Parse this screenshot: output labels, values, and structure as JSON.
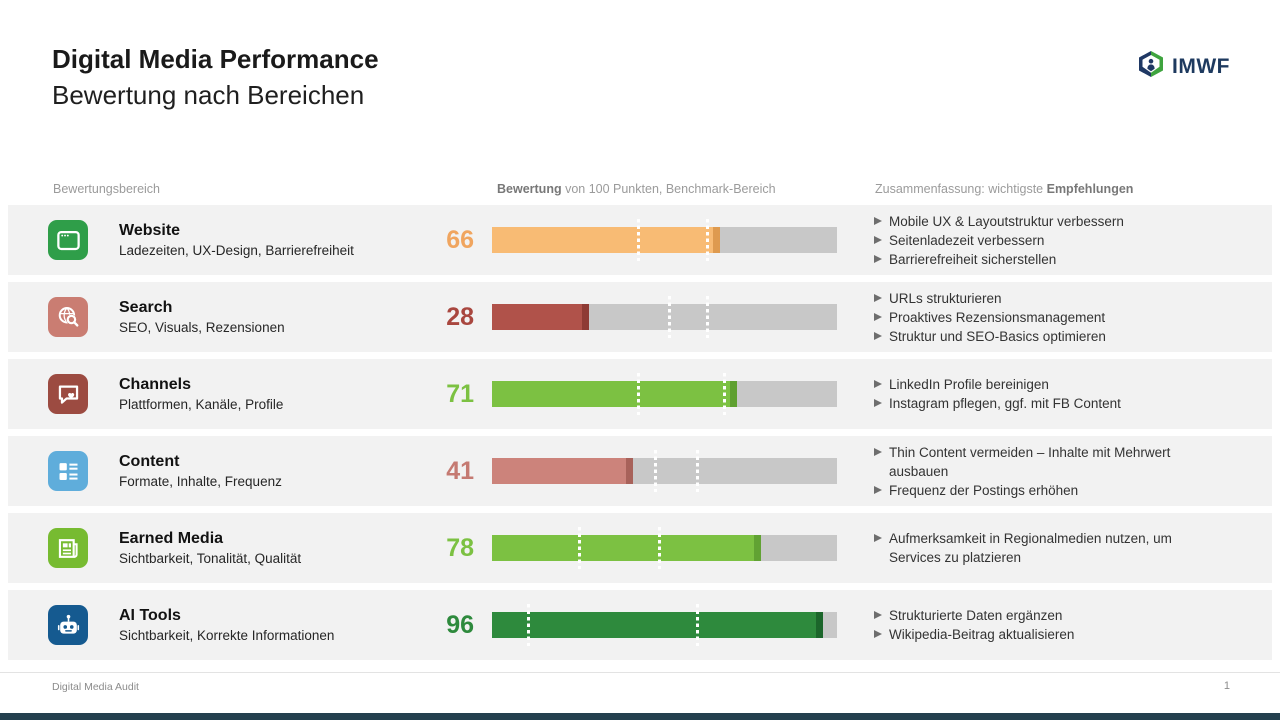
{
  "header": {
    "title": "Digital Media Performance",
    "subtitle": "Bewertung nach Bereichen",
    "logo_text": "IMWF"
  },
  "columns": {
    "area_label": "Bewertungsbereich",
    "score_label_bold": "Bewertung",
    "score_label_rest": " von 100 Punkten, Benchmark-Bereich",
    "summary_label_prefix": "Zusammenfassung: wichtigste ",
    "summary_label_bold": "Empfehlungen"
  },
  "footer": {
    "left": "Digital Media Audit",
    "page": "1"
  },
  "chart_data": {
    "type": "bar",
    "orientation": "horizontal",
    "title": "Digital Media Performance – Bewertung nach Bereichen",
    "value_note": "Bewertung von 100 Punkten, Benchmark-Bereich",
    "xlim": [
      0,
      100
    ],
    "categories": [
      "Website",
      "Search",
      "Channels",
      "Content",
      "Earned Media",
      "AI Tools"
    ],
    "values": [
      66,
      28,
      71,
      41,
      78,
      96
    ],
    "benchmark_ranges": [
      [
        42,
        62
      ],
      [
        51,
        62
      ],
      [
        42,
        67
      ],
      [
        47,
        59
      ],
      [
        25,
        48
      ],
      [
        10,
        59
      ]
    ],
    "bar_colors": [
      "#f8bb74",
      "#b0524a",
      "#7cc142",
      "#cc837b",
      "#7cc142",
      "#2e8a3d"
    ],
    "track_color": "#c8c8c8"
  },
  "rows": [
    {
      "name": "Website",
      "subtitle": "Ladezeiten, UX-Design, Barrierefreiheit",
      "score": 66,
      "icon": "browser-window-icon",
      "icon_color": "#2f9e49",
      "score_color": "#f0a55f",
      "bar_color": "#f8bb74",
      "bar_cap_color": "#de9a4f",
      "benchmark": [
        42,
        62
      ],
      "recommendations": [
        "Mobile UX & Layoutstruktur verbessern",
        "Seitenladezeit verbessern",
        "Barrierefreiheit sicherstellen"
      ]
    },
    {
      "name": "Search",
      "subtitle": "SEO, Visuals, Rezensionen",
      "score": 28,
      "icon": "globe-search-icon",
      "icon_color": "#ca7d72",
      "score_color": "#a9473f",
      "bar_color": "#b0524a",
      "bar_cap_color": "#8e3b35",
      "benchmark": [
        51,
        62
      ],
      "recommendations": [
        "URLs strukturieren",
        "Proaktives Rezensionsmanagement",
        "Struktur und SEO-Basics optimieren"
      ]
    },
    {
      "name": "Channels",
      "subtitle": "Plattformen, Kanäle, Profile",
      "score": 71,
      "icon": "chat-heart-icon",
      "icon_color": "#9c4b41",
      "score_color": "#7cc142",
      "bar_color": "#7cc142",
      "bar_cap_color": "#5fa030",
      "benchmark": [
        42,
        67
      ],
      "recommendations": [
        "LinkedIn Profile bereinigen",
        "Instagram pflegen, ggf. mit FB Content"
      ]
    },
    {
      "name": "Content",
      "subtitle": "Formate, Inhalte, Frequenz",
      "score": 41,
      "icon": "content-layout-icon",
      "icon_color": "#5faddb",
      "score_color": "#c57a72",
      "bar_color": "#cc837b",
      "bar_cap_color": "#a8625a",
      "benchmark": [
        47,
        59
      ],
      "recommendations": [
        "Thin Content vermeiden – Inhalte mit Mehrwert ausbauen",
        "Frequenz der Postings erhöhen"
      ]
    },
    {
      "name": "Earned Media",
      "subtitle": "Sichtbarkeit, Tonalität, Qualität",
      "score": 78,
      "icon": "newspaper-icon",
      "icon_color": "#77bb31",
      "score_color": "#7cc142",
      "bar_color": "#7cc142",
      "bar_cap_color": "#61a233",
      "benchmark": [
        25,
        48
      ],
      "recommendations": [
        "Aufmerksamkeit in Regionalmedien nutzen, um Services zu platzieren"
      ]
    },
    {
      "name": "AI Tools",
      "subtitle": "Sichtbarkeit, Korrekte Informationen",
      "score": 96,
      "icon": "robot-icon",
      "icon_color": "#155a90",
      "score_color": "#2e8a3d",
      "bar_color": "#2e8a3d",
      "bar_cap_color": "#1c662b",
      "benchmark": [
        10,
        59
      ],
      "recommendations": [
        "Strukturierte Daten ergänzen",
        "Wikipedia-Beitrag aktualisieren"
      ]
    }
  ]
}
